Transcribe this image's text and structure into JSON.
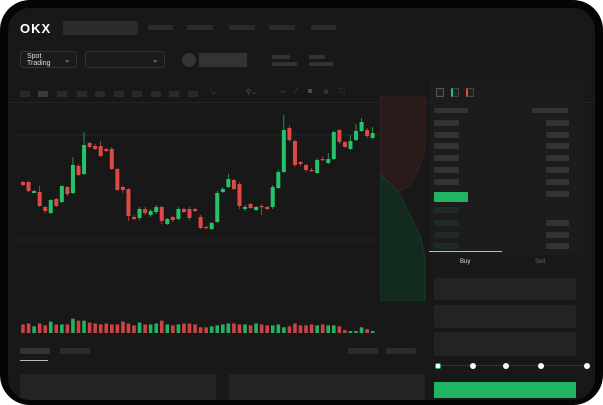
{
  "header": {
    "logo": "OKX"
  },
  "toolbar": {
    "market_selector": "Spot Trading"
  },
  "trade": {
    "tabs": [
      "Buy",
      "Sell"
    ],
    "leverage_levels": 5,
    "selected_level": 0
  },
  "colors": {
    "up": "#26c26b",
    "down": "#e04848",
    "accent": "#21b463",
    "background": "#181818"
  },
  "icons": [
    "chevron-down-icon",
    "candle-type-icon",
    "indicator-icon",
    "draw-line-icon",
    "ruler-icon",
    "camera-icon",
    "settings-icon",
    "fullscreen-icon",
    "orderbook-both-icon",
    "orderbook-bids-icon",
    "orderbook-asks-icon"
  ],
  "chart_data": {
    "type": "candlestick",
    "ylim": [
      -45,
      160
    ],
    "candles": [
      [
        68,
        65,
        69,
        64
      ],
      [
        68,
        59,
        69,
        58
      ],
      [
        57,
        59,
        60,
        57
      ],
      [
        58,
        44,
        64,
        43
      ],
      [
        43,
        39,
        44,
        37
      ],
      [
        37,
        50,
        51,
        36
      ],
      [
        51,
        44,
        52,
        43
      ],
      [
        48,
        64,
        65,
        47
      ],
      [
        63,
        56,
        64,
        54
      ],
      [
        57,
        85,
        93,
        56
      ],
      [
        84,
        75,
        86,
        74
      ],
      [
        76,
        105,
        118,
        75
      ],
      [
        107,
        103,
        108,
        102
      ],
      [
        104,
        101,
        106,
        100
      ],
      [
        104,
        94,
        109,
        93
      ],
      [
        101,
        99,
        102,
        98
      ],
      [
        101,
        81,
        103,
        80
      ],
      [
        81,
        60,
        82,
        59
      ],
      [
        63,
        60,
        64,
        57
      ],
      [
        61,
        34,
        62,
        29
      ],
      [
        33,
        31,
        35,
        30
      ],
      [
        32,
        41,
        43,
        30
      ],
      [
        41,
        37,
        43,
        35
      ],
      [
        35,
        39,
        41,
        33
      ],
      [
        38,
        43,
        45,
        36
      ],
      [
        43,
        29,
        44,
        26
      ],
      [
        26,
        31,
        32,
        25
      ],
      [
        33,
        30,
        34,
        28
      ],
      [
        31,
        41,
        43,
        30
      ],
      [
        41,
        38,
        42,
        37
      ],
      [
        41,
        32,
        43,
        30
      ],
      [
        41,
        39,
        42,
        38
      ],
      [
        33,
        22,
        35,
        21
      ],
      [
        23,
        22,
        24,
        21
      ],
      [
        21,
        27,
        28,
        20
      ],
      [
        28,
        57,
        59,
        27
      ],
      [
        58,
        61,
        63,
        57
      ],
      [
        63,
        71,
        76,
        62
      ],
      [
        70,
        61,
        71,
        60
      ],
      [
        66,
        44,
        68,
        41
      ],
      [
        41,
        43,
        45,
        39
      ],
      [
        46,
        42,
        47,
        41
      ],
      [
        40,
        43,
        44,
        39
      ],
      [
        44,
        43,
        46,
        35
      ],
      [
        43,
        41,
        44,
        40
      ],
      [
        43,
        63,
        65,
        41
      ],
      [
        62,
        78,
        80,
        61
      ],
      [
        78,
        120,
        135,
        77
      ],
      [
        122,
        110,
        124,
        108
      ],
      [
        109,
        85,
        110,
        83
      ],
      [
        88,
        86,
        89,
        84
      ],
      [
        85,
        80,
        86,
        78
      ],
      [
        80,
        79,
        82,
        78
      ],
      [
        77,
        90,
        92,
        76
      ],
      [
        91,
        90,
        94,
        89
      ],
      [
        87,
        91,
        97,
        86
      ],
      [
        91,
        118,
        119,
        90
      ],
      [
        120,
        108,
        121,
        106
      ],
      [
        108,
        103,
        109,
        102
      ],
      [
        101,
        109,
        115,
        100
      ],
      [
        110,
        119,
        126,
        109
      ],
      [
        119,
        128,
        132,
        118
      ],
      [
        120,
        114,
        122,
        112
      ],
      [
        112,
        117,
        123,
        111
      ]
    ],
    "volume": [
      9,
      10,
      7,
      10,
      8,
      12,
      9,
      9,
      9,
      15,
      13,
      13,
      11,
      10,
      9,
      10,
      9,
      9,
      12,
      10,
      8,
      11,
      9,
      9,
      10,
      13,
      9,
      8,
      9,
      10,
      10,
      9,
      6,
      6,
      7,
      8,
      9,
      10,
      10,
      9,
      9,
      8,
      10,
      9,
      8,
      8,
      9,
      6,
      7,
      10,
      8,
      8,
      9,
      8,
      9,
      8,
      8,
      7,
      3,
      2,
      2,
      6,
      4,
      2
    ],
    "grid": true
  }
}
